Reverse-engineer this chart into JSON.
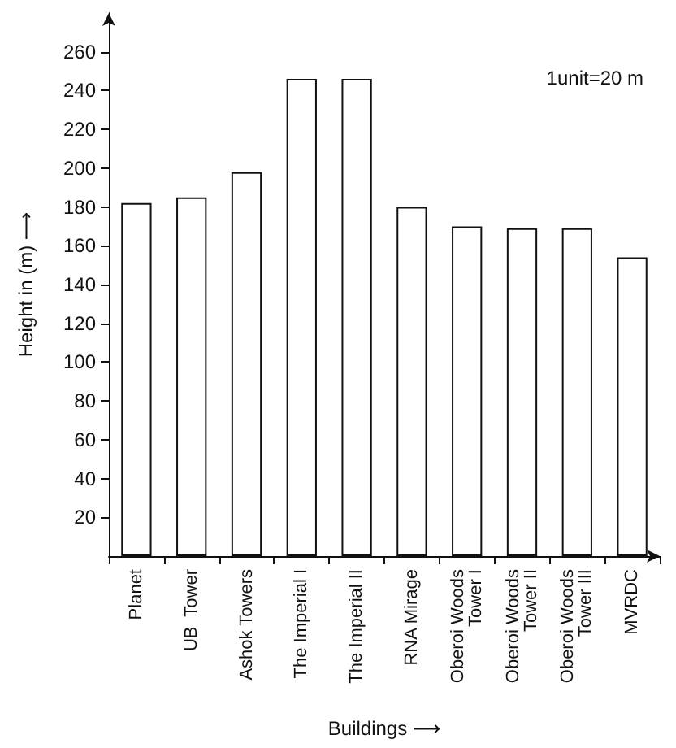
{
  "chart_data": {
    "type": "bar",
    "xlabel": "Buildings ⟶",
    "ylabel": "Height in (m) ⟶",
    "categories": [
      "Planet",
      "UB  Tower",
      "Ashok Towers",
      "The Imperial I",
      "The Imperial II",
      "RNA Mirage",
      "Oberoi Woods\nTower I",
      "Oberoi Woods\nTower II",
      "Oberoi Woods\nTower III",
      "MVRDC"
    ],
    "values": [
      182,
      185,
      198,
      246,
      246,
      180,
      170,
      169,
      169,
      154
    ],
    "color": "#ffffff",
    "ylim": [
      0,
      280
    ],
    "yticks": [
      20,
      40,
      60,
      80,
      100,
      120,
      140,
      160,
      180,
      200,
      220,
      240,
      260
    ],
    "annotations": [
      "1unit=20 m"
    ]
  }
}
